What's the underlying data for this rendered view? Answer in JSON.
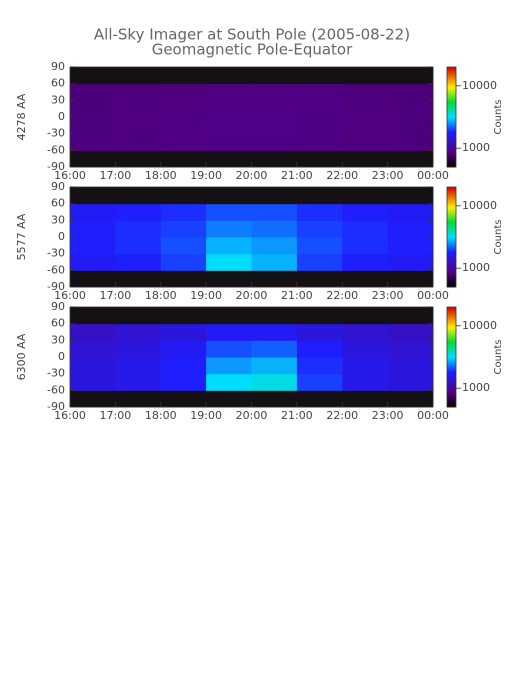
{
  "chart_data": [
    {
      "type": "heatmap",
      "title": "All-Sky Imager at South Pole (2005-08-22)",
      "subtitle": "Geomagnetic Pole-Equator",
      "ylabel": "4278 AA",
      "zlabel": "Counts",
      "x_bins": [
        16,
        17,
        18,
        19,
        20,
        21,
        22,
        23,
        24
      ],
      "y_bins": [
        -90,
        -60,
        -30,
        0,
        30,
        60,
        90
      ],
      "z": [
        [
          null,
          null,
          null,
          null,
          null,
          null,
          null,
          null
        ],
        [
          850,
          850,
          880,
          900,
          900,
          880,
          860,
          850
        ],
        [
          850,
          860,
          880,
          920,
          920,
          890,
          870,
          850
        ],
        [
          850,
          860,
          870,
          900,
          900,
          880,
          860,
          850
        ],
        [
          840,
          850,
          860,
          880,
          880,
          870,
          850,
          840
        ],
        [
          null,
          null,
          null,
          null,
          null,
          null,
          null,
          null
        ]
      ],
      "xlim": [
        16,
        24
      ],
      "xticks": [
        {
          "value": 16,
          "label": "16:00"
        },
        {
          "value": 17,
          "label": "17:00"
        },
        {
          "value": 18,
          "label": "18:00"
        },
        {
          "value": 19,
          "label": "19:00"
        },
        {
          "value": 20,
          "label": "20:00"
        },
        {
          "value": 21,
          "label": "21:00"
        },
        {
          "value": 22,
          "label": "22:00"
        },
        {
          "value": 23,
          "label": "23:00"
        },
        {
          "value": 24,
          "label": "00:00"
        }
      ],
      "ylim": [
        -90,
        90
      ],
      "yticks": [
        -90,
        -60,
        -30,
        0,
        30,
        60,
        90
      ],
      "zlim": [
        500,
        20000
      ],
      "zticks": [
        1000,
        10000
      ],
      "zscale": "log"
    },
    {
      "type": "heatmap",
      "ylabel": "5577 AA",
      "zlabel": "Counts",
      "x_bins": [
        16,
        17,
        18,
        19,
        20,
        21,
        22,
        23,
        24
      ],
      "y_bins": [
        -90,
        -60,
        -30,
        0,
        30,
        60,
        90
      ],
      "z": [
        [
          null,
          null,
          null,
          null,
          null,
          null,
          null,
          null
        ],
        [
          1700,
          1800,
          2000,
          3200,
          2800,
          2000,
          1800,
          1700
        ],
        [
          1800,
          1900,
          2100,
          2800,
          2600,
          2100,
          1900,
          1800
        ],
        [
          1800,
          1900,
          2000,
          2400,
          2300,
          2000,
          1900,
          1800
        ],
        [
          1700,
          1800,
          1900,
          2100,
          2100,
          1900,
          1800,
          1700
        ],
        [
          null,
          null,
          null,
          null,
          null,
          null,
          null,
          null
        ]
      ],
      "xlim": [
        16,
        24
      ],
      "xticks": [
        {
          "value": 16,
          "label": "16:00"
        },
        {
          "value": 17,
          "label": "17:00"
        },
        {
          "value": 18,
          "label": "18:00"
        },
        {
          "value": 19,
          "label": "19:00"
        },
        {
          "value": 20,
          "label": "20:00"
        },
        {
          "value": 21,
          "label": "21:00"
        },
        {
          "value": 22,
          "label": "22:00"
        },
        {
          "value": 23,
          "label": "23:00"
        },
        {
          "value": 24,
          "label": "00:00"
        }
      ],
      "ylim": [
        -90,
        90
      ],
      "yticks": [
        -90,
        -60,
        -30,
        0,
        30,
        60,
        90
      ],
      "zlim": [
        500,
        20000
      ],
      "zticks": [
        1000,
        10000
      ],
      "zscale": "log"
    },
    {
      "type": "heatmap",
      "ylabel": "6300 AA",
      "zlabel": "Counts",
      "x_bins": [
        16,
        17,
        18,
        19,
        20,
        21,
        22,
        23,
        24
      ],
      "y_bins": [
        -90,
        -60,
        -30,
        0,
        30,
        60,
        90
      ],
      "z": [
        [
          null,
          null,
          null,
          null,
          null,
          null,
          null,
          null
        ],
        [
          1500,
          1600,
          1800,
          3200,
          3400,
          2000,
          1600,
          1500
        ],
        [
          1500,
          1600,
          1800,
          2600,
          2800,
          1900,
          1600,
          1500
        ],
        [
          1400,
          1500,
          1700,
          2100,
          2200,
          1800,
          1500,
          1400
        ],
        [
          1300,
          1400,
          1500,
          1700,
          1700,
          1500,
          1400,
          1300
        ],
        [
          null,
          null,
          null,
          null,
          null,
          null,
          null,
          null
        ]
      ],
      "xlim": [
        16,
        24
      ],
      "xticks": [
        {
          "value": 16,
          "label": "16:00"
        },
        {
          "value": 17,
          "label": "17:00"
        },
        {
          "value": 18,
          "label": "18:00"
        },
        {
          "value": 19,
          "label": "19:00"
        },
        {
          "value": 20,
          "label": "20:00"
        },
        {
          "value": 21,
          "label": "21:00"
        },
        {
          "value": 22,
          "label": "22:00"
        },
        {
          "value": 23,
          "label": "23:00"
        },
        {
          "value": 24,
          "label": "00:00"
        }
      ],
      "ylim": [
        -90,
        90
      ],
      "yticks": [
        -90,
        -60,
        -30,
        0,
        30,
        60,
        90
      ],
      "zlim": [
        500,
        20000
      ],
      "zticks": [
        1000,
        10000
      ],
      "zscale": "log"
    }
  ]
}
